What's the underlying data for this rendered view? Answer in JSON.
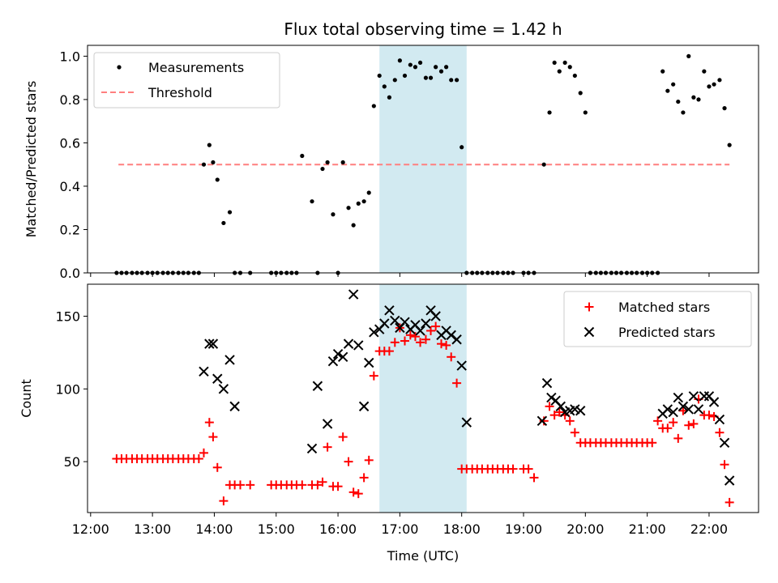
{
  "chart_data": [
    {
      "type": "scatter",
      "title": "Flux total observing time = 1.42 h",
      "ylabel": "Matched/Predicted stars",
      "xlabel": "",
      "ylim": [
        0,
        1.05
      ],
      "yticks": [
        "0.0",
        "0.2",
        "0.4",
        "0.6",
        "0.8",
        "1.0"
      ],
      "legend": {
        "placement": "top-left",
        "entries": [
          "Measurements",
          "Threshold"
        ]
      },
      "highlight_interval_hours": [
        16.67,
        18.08
      ],
      "highlight_color": "#add8e6",
      "threshold": {
        "name": "Threshold",
        "value": 0.5,
        "x_range_hours": [
          12.45,
          22.33
        ],
        "color": "#ff7f7f"
      },
      "series": [
        {
          "name": "Measurements",
          "color": "#000000",
          "x_hours": [
            12.42,
            12.5,
            12.58,
            12.67,
            12.75,
            12.83,
            12.92,
            13.0,
            13.08,
            13.17,
            13.25,
            13.33,
            13.42,
            13.5,
            13.58,
            13.67,
            13.75,
            13.83,
            13.92,
            13.98,
            14.05,
            14.15,
            14.25,
            14.33,
            14.42,
            14.58,
            14.92,
            15.0,
            15.08,
            15.17,
            15.25,
            15.33,
            15.42,
            15.58,
            15.67,
            15.75,
            15.83,
            15.92,
            16.0,
            16.08,
            16.17,
            16.25,
            16.33,
            16.42,
            16.5,
            16.58,
            16.67,
            16.75,
            16.83,
            16.92,
            17.0,
            17.08,
            17.17,
            17.25,
            17.33,
            17.42,
            17.5,
            17.58,
            17.67,
            17.75,
            17.83,
            17.92,
            18.0,
            18.08,
            18.17,
            18.25,
            18.33,
            18.42,
            18.5,
            18.58,
            18.67,
            18.75,
            18.83,
            19.0,
            19.08,
            19.17,
            19.33,
            19.42,
            19.5,
            19.58,
            19.67,
            19.75,
            19.83,
            19.92,
            20.0,
            20.08,
            20.17,
            20.25,
            20.33,
            20.42,
            20.5,
            20.58,
            20.67,
            20.75,
            20.83,
            20.92,
            21.0,
            21.08,
            21.17,
            21.25,
            21.33,
            21.42,
            21.5,
            21.58,
            21.67,
            21.75,
            21.83,
            21.92,
            22.0,
            22.08,
            22.17,
            22.25,
            22.33
          ],
          "y": [
            0,
            0,
            0,
            0,
            0,
            0,
            0,
            0,
            0,
            0,
            0,
            0,
            0,
            0,
            0,
            0,
            0,
            0.5,
            0.59,
            0.51,
            0.43,
            0.23,
            0.28,
            0,
            0,
            0,
            0,
            0,
            0,
            0,
            0,
            0,
            0.54,
            0.33,
            0,
            0.48,
            0.51,
            0.27,
            0,
            0.51,
            0.3,
            0.22,
            0.32,
            0.33,
            0.37,
            0.77,
            0.91,
            0.86,
            0.81,
            0.89,
            0.98,
            0.91,
            0.96,
            0.95,
            0.97,
            0.9,
            0.9,
            0.95,
            0.93,
            0.95,
            0.89,
            0.89,
            0.58,
            0,
            0,
            0,
            0,
            0,
            0,
            0,
            0,
            0,
            0,
            0,
            0,
            0,
            0.5,
            0.74,
            0.97,
            0.93,
            0.97,
            0.95,
            0.91,
            0.83,
            0.74,
            0,
            0,
            0,
            0,
            0,
            0,
            0,
            0,
            0,
            0,
            0,
            0,
            0,
            0,
            0.93,
            0.84,
            0.87,
            0.79,
            0.74,
            1.0,
            0.81,
            0.8,
            0.93,
            0.86,
            0.87,
            0.89,
            0.76,
            0.59
          ]
        }
      ]
    },
    {
      "type": "scatter",
      "title": "",
      "xlabel": "Time (UTC)",
      "ylabel": "Count",
      "ylim": [
        15,
        172
      ],
      "yticks": [
        "50",
        "100",
        "150"
      ],
      "xlim_hours": [
        11.95,
        22.8
      ],
      "xticks": [
        "12:00",
        "13:00",
        "14:00",
        "15:00",
        "16:00",
        "17:00",
        "18:00",
        "19:00",
        "20:00",
        "21:00",
        "22:00"
      ],
      "legend": {
        "placement": "top-right",
        "entries": [
          "Matched stars",
          "Predicted stars"
        ]
      },
      "highlight_interval_hours": [
        16.67,
        18.08
      ],
      "highlight_color": "#add8e6",
      "series": [
        {
          "name": "Matched stars",
          "marker": "plus",
          "color": "#ff0000",
          "x_hours": [
            12.42,
            12.5,
            12.58,
            12.67,
            12.75,
            12.83,
            12.92,
            13.0,
            13.08,
            13.17,
            13.25,
            13.33,
            13.42,
            13.5,
            13.58,
            13.67,
            13.75,
            13.83,
            13.92,
            13.98,
            14.05,
            14.15,
            14.25,
            14.33,
            14.42,
            14.58,
            14.92,
            15.0,
            15.08,
            15.17,
            15.25,
            15.33,
            15.42,
            15.58,
            15.67,
            15.75,
            15.83,
            15.92,
            16.0,
            16.08,
            16.17,
            16.25,
            16.33,
            16.42,
            16.5,
            16.58,
            16.67,
            16.75,
            16.83,
            16.92,
            17.0,
            17.08,
            17.17,
            17.25,
            17.33,
            17.42,
            17.5,
            17.58,
            17.67,
            17.75,
            17.83,
            17.92,
            18.0,
            18.08,
            18.17,
            18.25,
            18.33,
            18.42,
            18.5,
            18.58,
            18.67,
            18.75,
            18.83,
            19.0,
            19.08,
            19.17,
            19.33,
            19.42,
            19.5,
            19.58,
            19.67,
            19.75,
            19.83,
            19.92,
            20.0,
            20.08,
            20.17,
            20.25,
            20.33,
            20.42,
            20.5,
            20.58,
            20.67,
            20.75,
            20.83,
            20.92,
            21.0,
            21.08,
            21.17,
            21.25,
            21.33,
            21.42,
            21.5,
            21.58,
            21.67,
            21.75,
            21.83,
            21.92,
            22.0,
            22.08,
            22.17,
            22.25,
            22.33
          ],
          "y": [
            52,
            52,
            52,
            52,
            52,
            52,
            52,
            52,
            52,
            52,
            52,
            52,
            52,
            52,
            52,
            52,
            52,
            56,
            77,
            67,
            46,
            23,
            34,
            34,
            34,
            34,
            34,
            34,
            34,
            34,
            34,
            34,
            34,
            34,
            34,
            36,
            60,
            33,
            33,
            67,
            50,
            29,
            28,
            39,
            51,
            109,
            126,
            126,
            126,
            132,
            142,
            133,
            137,
            136,
            132,
            134,
            140,
            143,
            131,
            130,
            122,
            104,
            45,
            45,
            45,
            45,
            45,
            45,
            45,
            45,
            45,
            45,
            45,
            45,
            45,
            39,
            78,
            88,
            82,
            84,
            82,
            78,
            70,
            63,
            63,
            63,
            63,
            63,
            63,
            63,
            63,
            63,
            63,
            63,
            63,
            63,
            63,
            63,
            78,
            73,
            73,
            77,
            66,
            85,
            75,
            76,
            93,
            82,
            82,
            81,
            70,
            48,
            22
          ]
        },
        {
          "name": "Predicted stars",
          "marker": "x",
          "color": "#000000",
          "x_hours": [
            13.83,
            13.92,
            13.98,
            14.05,
            14.15,
            14.25,
            14.33,
            15.58,
            15.67,
            15.83,
            15.92,
            16.0,
            16.08,
            16.17,
            16.25,
            16.33,
            16.42,
            16.5,
            16.58,
            16.67,
            16.75,
            16.83,
            16.92,
            17.0,
            17.08,
            17.17,
            17.25,
            17.33,
            17.42,
            17.5,
            17.58,
            17.67,
            17.75,
            17.83,
            17.92,
            18.0,
            18.08,
            19.3,
            19.38,
            19.45,
            19.52,
            19.6,
            19.67,
            19.75,
            19.83,
            19.92,
            21.25,
            21.33,
            21.42,
            21.5,
            21.58,
            21.67,
            21.75,
            21.83,
            21.92,
            22.0,
            22.08,
            22.17,
            22.25,
            22.33
          ],
          "y": [
            112,
            131,
            131,
            107,
            100,
            120,
            88,
            59,
            102,
            76,
            119,
            124,
            122,
            131,
            165,
            130,
            88,
            118,
            139,
            141,
            145,
            154,
            147,
            142,
            146,
            141,
            144,
            140,
            145,
            154,
            150,
            137,
            140,
            137,
            134,
            116,
            77,
            78,
            104,
            94,
            92,
            88,
            84,
            85,
            86,
            85,
            83,
            86,
            84,
            94,
            88,
            86,
            95,
            86,
            95,
            95,
            91,
            79,
            63,
            37
          ]
        }
      ]
    }
  ]
}
